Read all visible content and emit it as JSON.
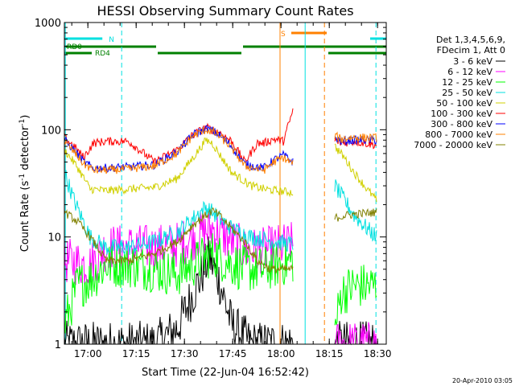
{
  "chart_data": {
    "type": "line",
    "title": "HESSI Observing Summary Count Rates",
    "xlabel": "Start Time (22-Jun-04 16:52:42)",
    "ylabel_main": "Count Rate (s",
    "ylabel_sup1": "-1",
    "ylabel_mid": " detector",
    "ylabel_sup2": "-1",
    "ylabel_end": ")",
    "yscale": "log",
    "ylim": [
      1,
      1000
    ],
    "xlim_minutes": [
      0,
      100
    ],
    "x_ticks": [
      {
        "label": "17:00",
        "min": 7.3
      },
      {
        "label": "17:15",
        "min": 22.3
      },
      {
        "label": "17:30",
        "min": 37.3
      },
      {
        "label": "17:45",
        "min": 52.3
      },
      {
        "label": "18:00",
        "min": 67.3
      },
      {
        "label": "18:15",
        "min": 82.3
      },
      {
        "label": "18:30",
        "min": 97.3
      }
    ],
    "y_ticks": [
      {
        "label": "1",
        "value": 1
      },
      {
        "label": "10",
        "value": 10
      },
      {
        "label": "100",
        "value": 100
      },
      {
        "label": "1000",
        "value": 1000
      }
    ],
    "legend_header": [
      "Det 1,3,4,5,6,9,",
      "FDecim 1, Att 0"
    ],
    "footer_date": "20-Apr-2010 03:05",
    "flags": [
      {
        "name": "N",
        "color": "#00e0e0",
        "segments": [
          [
            0,
            11.8
          ],
          [
            95,
            100
          ]
        ]
      },
      {
        "name": "S",
        "color": "#ff8000",
        "segments": [
          [
            70.5,
            81.5
          ]
        ]
      },
      {
        "name": "RD0",
        "color": "#008000",
        "segments": [
          [
            0,
            28.5
          ],
          [
            55.5,
            100
          ]
        ]
      },
      {
        "name": "RD4",
        "color": "#008000",
        "segments": [
          [
            0,
            8.5
          ],
          [
            29,
            55
          ],
          [
            82,
            100
          ]
        ]
      }
    ],
    "flag_labels": {
      "N": "N",
      "S": "S",
      "RD0": "RD0",
      "RD4": "RD4"
    },
    "vlines": [
      {
        "min": 0.3,
        "color": "#00e0e0",
        "style": "solid"
      },
      {
        "min": 17.8,
        "color": "#00e0e0",
        "style": "dashed"
      },
      {
        "min": 67.0,
        "color": "#ff8000",
        "style": "solid"
      },
      {
        "min": 74.8,
        "color": "#00e0e0",
        "style": "solid"
      },
      {
        "min": 80.8,
        "color": "#ff8000",
        "style": "dashed"
      },
      {
        "min": 96.8,
        "color": "#00e0e0",
        "style": "dashed"
      }
    ],
    "segments_min": [
      [
        0,
        71.0
      ],
      [
        84.0,
        97.0
      ]
    ],
    "series": [
      {
        "name": "3 - 6 keV",
        "color": "#000000",
        "x": [
          0,
          12,
          28,
          35,
          42,
          45,
          48,
          52,
          58,
          64,
          71
        ],
        "y": [
          1.0,
          1.0,
          1.0,
          1.4,
          4.0,
          6.5,
          4.0,
          1.5,
          1.0,
          1.0,
          1.0
        ],
        "x2": [
          84,
          90,
          97
        ],
        "y2": [
          1.0,
          1.0,
          1.0
        ]
      },
      {
        "name": "6 - 12 keV",
        "color": "#ff00ff",
        "x": [
          0,
          8,
          13,
          20,
          28,
          35,
          42,
          46,
          50,
          56,
          62,
          66,
          71
        ],
        "y": [
          6.0,
          5.5,
          8.0,
          8.0,
          8.0,
          8.5,
          10.5,
          12.0,
          10.0,
          7.5,
          7.5,
          8.0,
          8.5
        ],
        "x2": [
          84,
          90,
          97
        ],
        "y2": [
          1.0,
          1.0,
          1.0
        ]
      },
      {
        "name": "12 - 25 keV",
        "color": "#00ff00",
        "x": [
          0,
          4,
          8,
          13,
          20,
          28,
          35,
          42,
          46,
          50,
          56,
          62,
          66,
          71
        ],
        "y": [
          1.5,
          3.5,
          4.0,
          5.5,
          5.5,
          5.0,
          4.5,
          6.0,
          7.0,
          6.0,
          5.0,
          5.0,
          5.5,
          6.0
        ],
        "x2": [
          84,
          86,
          90,
          97
        ],
        "y2": [
          1.3,
          3.0,
          3.5,
          3.5
        ]
      },
      {
        "name": "25 - 50 keV",
        "color": "#00e0e0",
        "x": [
          0,
          3,
          8,
          13,
          20,
          28,
          35,
          40,
          44,
          46,
          48,
          52,
          58,
          62,
          66,
          71
        ],
        "y": [
          40.0,
          22.0,
          10.0,
          8.0,
          8.0,
          9.0,
          11.0,
          15.0,
          19.0,
          17.0,
          15.0,
          12.0,
          10.0,
          9.5,
          9.0,
          8.5
        ],
        "x2": [
          84,
          87,
          90,
          94,
          97
        ],
        "y2": [
          30.0,
          22.0,
          16.0,
          12.0,
          10.0
        ]
      },
      {
        "name": "50 - 100 keV",
        "color": "#d0d000",
        "x": [
          0,
          4,
          8,
          13,
          20,
          28,
          35,
          40,
          44,
          46,
          48,
          52,
          58,
          62,
          66,
          71
        ],
        "y": [
          65.0,
          45.0,
          28.0,
          27.0,
          28.0,
          29.0,
          35.0,
          55.0,
          80.0,
          75.0,
          60.0,
          40.0,
          30.0,
          28.0,
          27.0,
          26.0
        ],
        "x2": [
          84,
          87,
          90,
          94,
          97
        ],
        "y2": [
          70.0,
          55.0,
          40.0,
          28.0,
          22.0
        ]
      },
      {
        "name": "100 - 300 keV",
        "color": "#ff0000",
        "x": [
          0,
          3,
          6,
          9,
          13,
          20,
          28,
          35,
          40,
          44,
          46,
          48,
          52,
          56,
          60,
          62,
          65,
          68,
          71
        ],
        "y": [
          85.0,
          70.0,
          55.0,
          75.0,
          78.0,
          78.0,
          50.0,
          65.0,
          90.0,
          105.0,
          100.0,
          95.0,
          78.0,
          50.0,
          75.0,
          75.0,
          82.0,
          78.0,
          150.0
        ],
        "x2": [
          84,
          86,
          90,
          97
        ],
        "y2": [
          80.0,
          75.0,
          78.0,
          72.0
        ]
      },
      {
        "name": "300 - 800 keV",
        "color": "#0000ff",
        "x": [
          0,
          3,
          6,
          9,
          13,
          20,
          28,
          35,
          40,
          44,
          46,
          48,
          52,
          56,
          60,
          62,
          65,
          68,
          71
        ],
        "y": [
          80.0,
          65.0,
          50.0,
          44.0,
          44.0,
          45.0,
          47.0,
          62.0,
          90.0,
          102.0,
          98.0,
          90.0,
          70.0,
          48.0,
          45.0,
          44.0,
          52.0,
          58.0,
          50.0
        ],
        "x2": [
          84,
          86,
          90,
          97
        ],
        "y2": [
          85.0,
          78.0,
          80.0,
          80.0
        ]
      },
      {
        "name": "800 - 7000 keV",
        "color": "#ff8000",
        "x": [
          0,
          3,
          6,
          9,
          13,
          20,
          28,
          35,
          40,
          44,
          46,
          48,
          52,
          56,
          60,
          62,
          65,
          68,
          71
        ],
        "y": [
          78.0,
          62.0,
          48.0,
          42.0,
          42.0,
          43.0,
          46.0,
          60.0,
          88.0,
          100.0,
          96.0,
          88.0,
          68.0,
          46.0,
          43.0,
          42.0,
          50.0,
          55.0,
          48.0
        ],
        "x2": [
          84,
          86,
          90,
          97
        ],
        "y2": [
          88.0,
          82.0,
          85.0,
          84.0
        ]
      },
      {
        "name": "7000 - 20000 keV",
        "color": "#808000",
        "x": [
          0,
          4,
          8,
          13,
          20,
          28,
          35,
          40,
          44,
          46,
          48,
          52,
          56,
          60,
          64,
          68,
          71
        ],
        "y": [
          17.0,
          14.0,
          10.0,
          6.0,
          6.0,
          7.0,
          9.0,
          13.0,
          16.0,
          17.5,
          16.0,
          12.0,
          9.0,
          6.0,
          5.0,
          5.0,
          5.0
        ],
        "x2": [
          84,
          88,
          92,
          97
        ],
        "y2": [
          15.0,
          16.0,
          16.5,
          17.0
        ]
      }
    ]
  }
}
